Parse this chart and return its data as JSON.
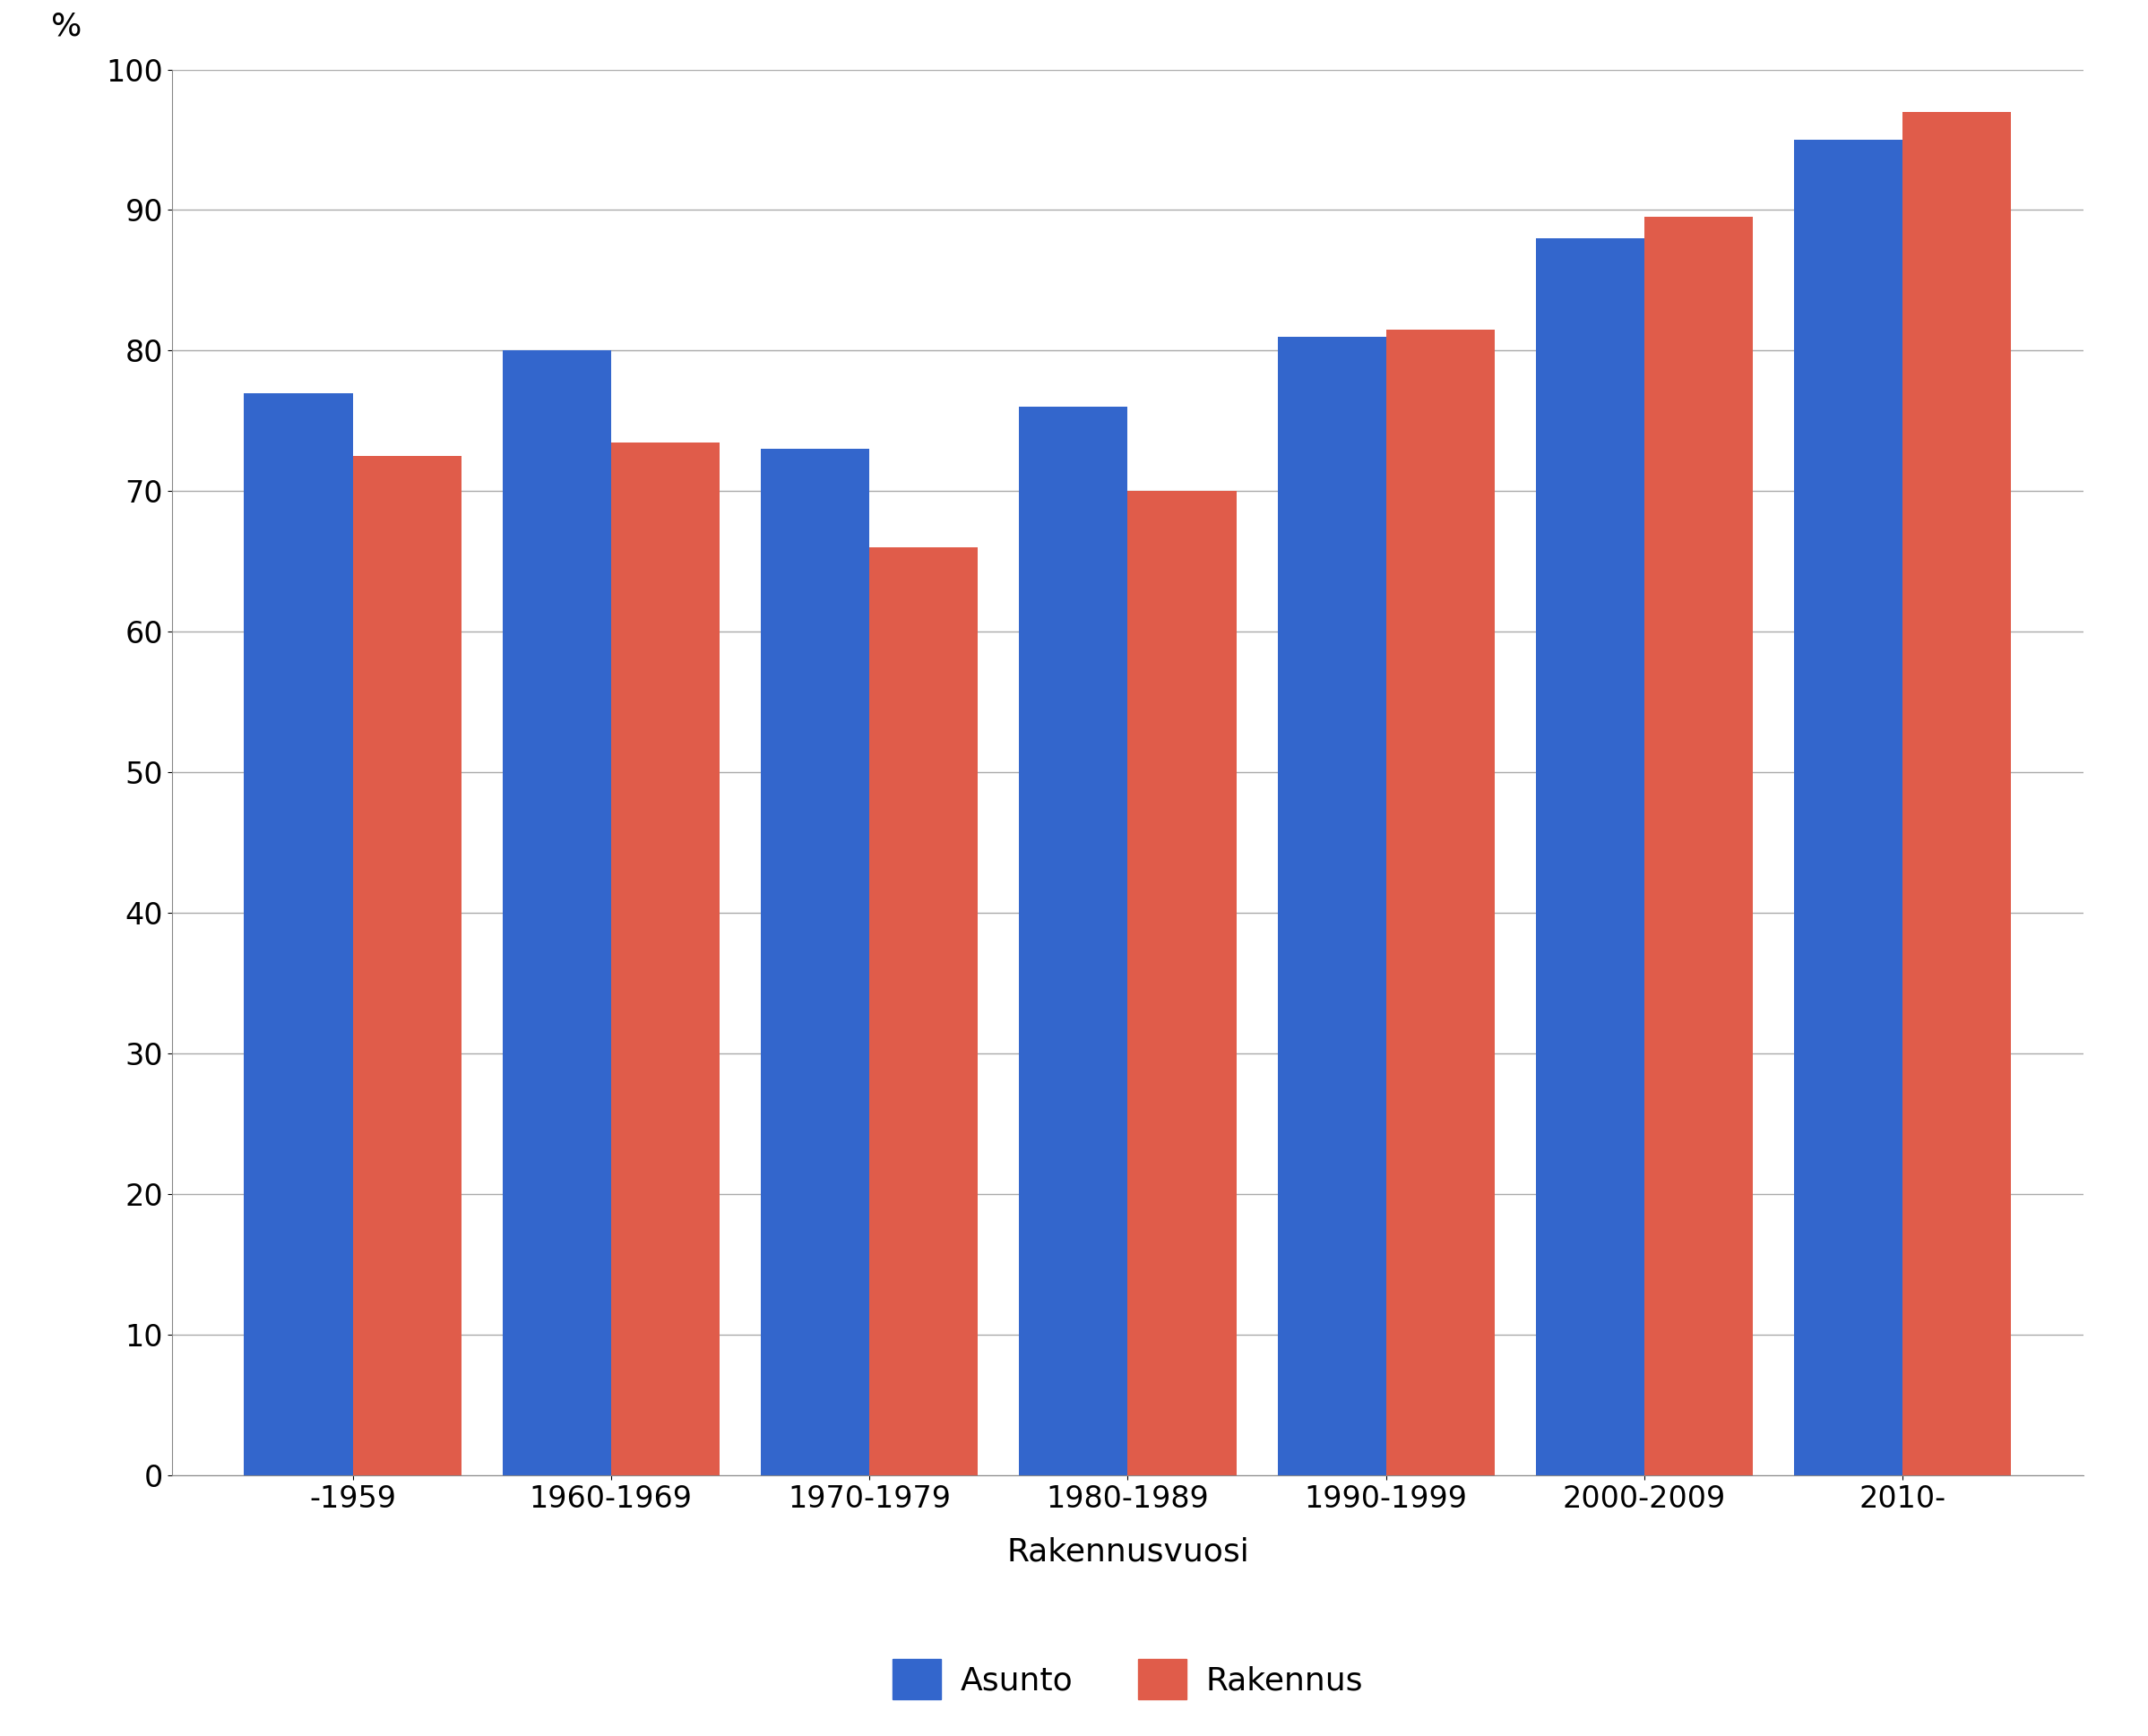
{
  "categories": [
    "-1959",
    "1960-1969",
    "1970-1979",
    "1980-1989",
    "1990-1999",
    "2000-2009",
    "2010-"
  ],
  "asunto_values": [
    77,
    80,
    73,
    76,
    81,
    88,
    95
  ],
  "rakennus_values": [
    72.5,
    73.5,
    66,
    70,
    81.5,
    89.5,
    97
  ],
  "asunto_color": "#3366CC",
  "rakennus_color": "#E05C4A",
  "ylabel": "%",
  "xlabel": "Rakennusvuosi",
  "ylim": [
    0,
    100
  ],
  "yticks": [
    0,
    10,
    20,
    30,
    40,
    50,
    60,
    70,
    80,
    90,
    100
  ],
  "legend_labels": [
    "Asunto",
    "Rakennus"
  ],
  "background_color": "#ffffff",
  "grid_color": "#aaaaaa",
  "bar_width": 0.42,
  "axis_fontsize": 26,
  "tick_fontsize": 24,
  "legend_fontsize": 26
}
